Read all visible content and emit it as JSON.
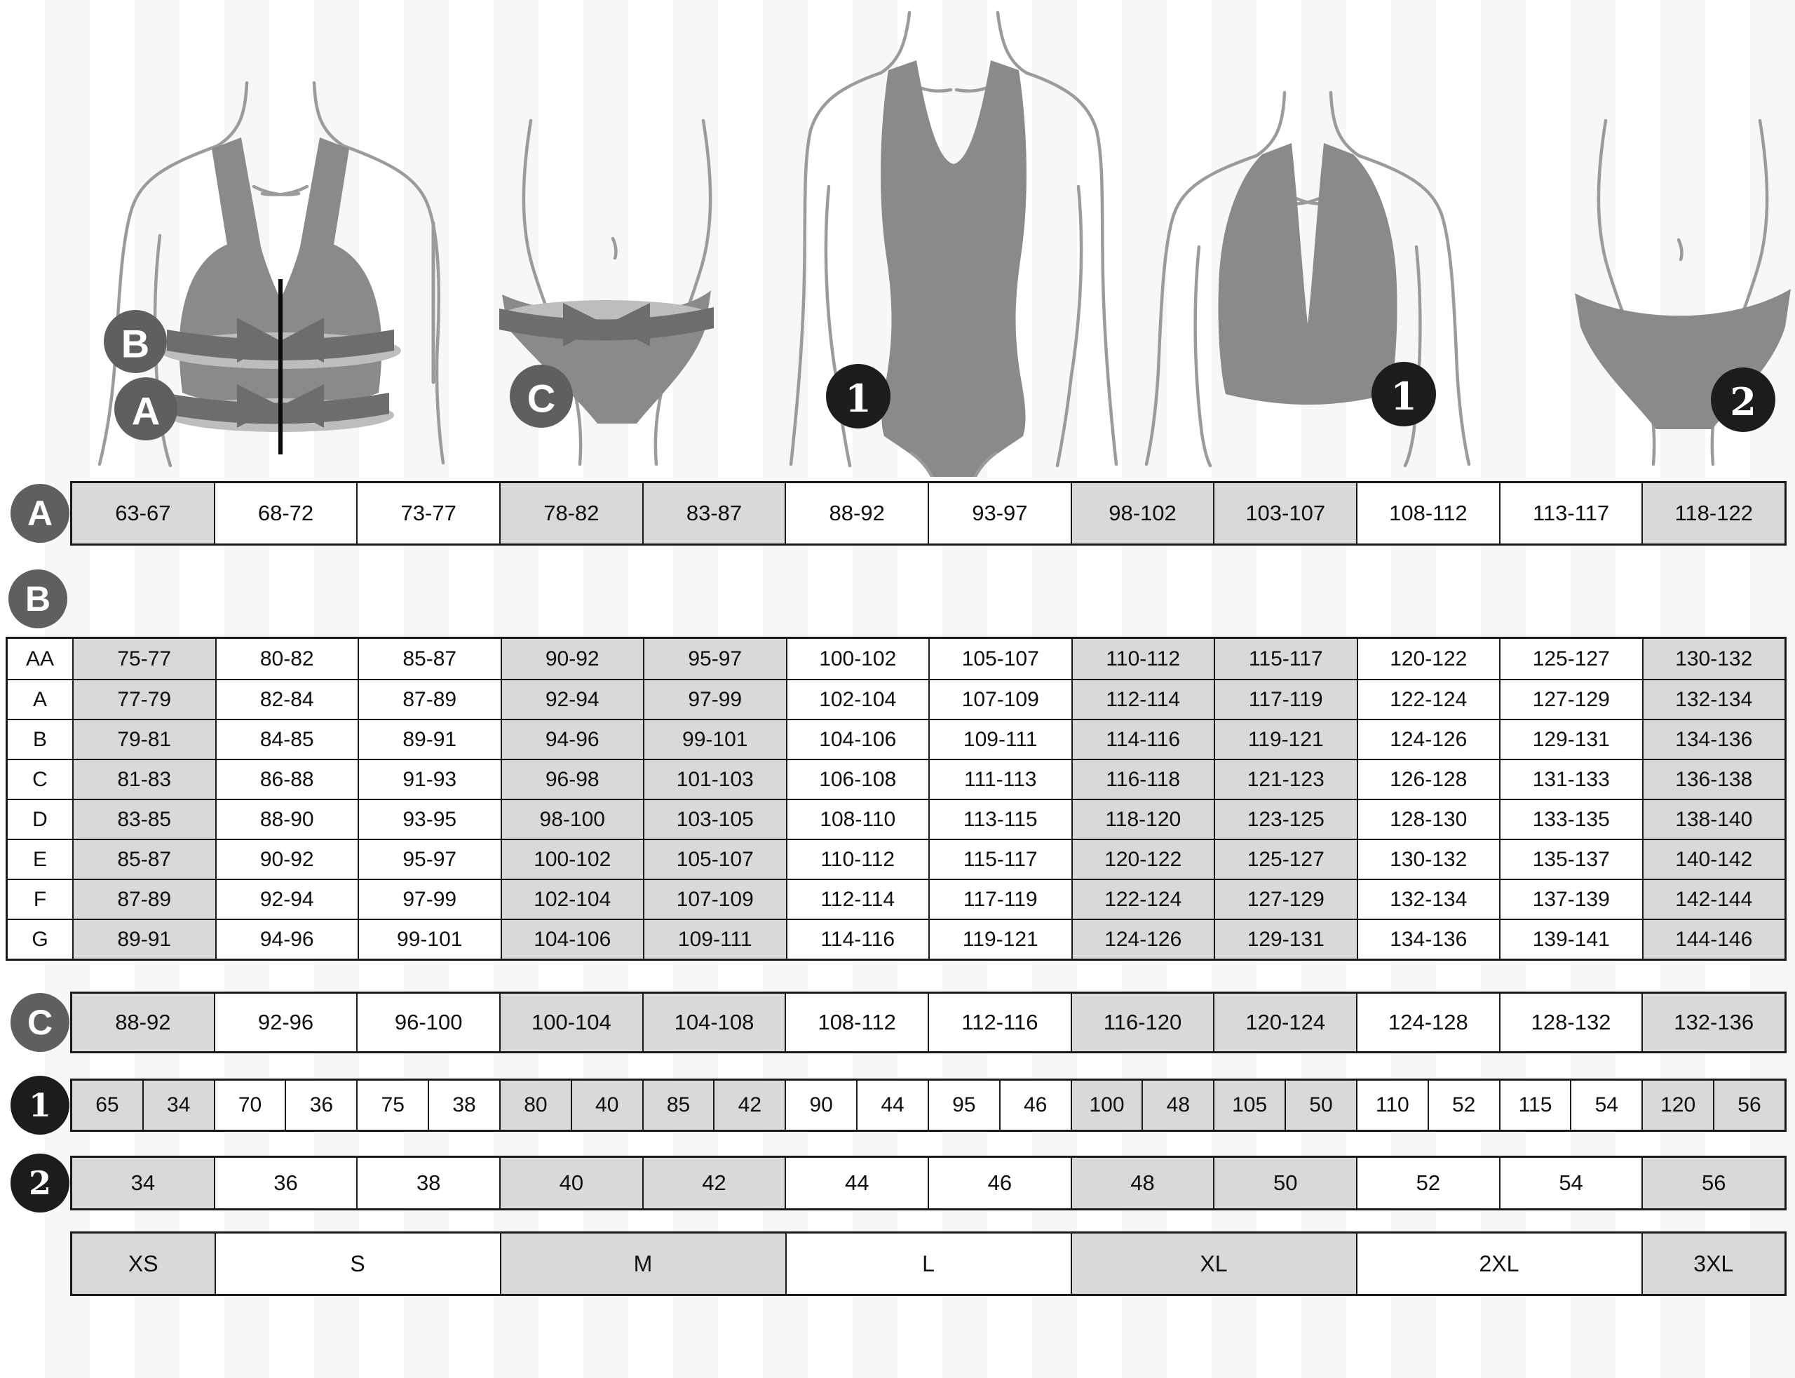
{
  "badges": {
    "underbust": "A",
    "bust": "B",
    "hips": "C",
    "one": "1",
    "two": "2"
  },
  "row_a": [
    "63-67",
    "68-72",
    "73-77",
    "78-82",
    "83-87",
    "88-92",
    "93-97",
    "98-102",
    "103-107",
    "108-112",
    "113-117",
    "118-122"
  ],
  "table_b": {
    "rows": [
      {
        "label": "AA",
        "values": [
          "75-77",
          "80-82",
          "85-87",
          "90-92",
          "95-97",
          "100-102",
          "105-107",
          "110-112",
          "115-117",
          "120-122",
          "125-127",
          "130-132"
        ]
      },
      {
        "label": "A",
        "values": [
          "77-79",
          "82-84",
          "87-89",
          "92-94",
          "97-99",
          "102-104",
          "107-109",
          "112-114",
          "117-119",
          "122-124",
          "127-129",
          "132-134"
        ]
      },
      {
        "label": "B",
        "values": [
          "79-81",
          "84-85",
          "89-91",
          "94-96",
          "99-101",
          "104-106",
          "109-111",
          "114-116",
          "119-121",
          "124-126",
          "129-131",
          "134-136"
        ]
      },
      {
        "label": "C",
        "values": [
          "81-83",
          "86-88",
          "91-93",
          "96-98",
          "101-103",
          "106-108",
          "111-113",
          "116-118",
          "121-123",
          "126-128",
          "131-133",
          "136-138"
        ]
      },
      {
        "label": "D",
        "values": [
          "83-85",
          "88-90",
          "93-95",
          "98-100",
          "103-105",
          "108-110",
          "113-115",
          "118-120",
          "123-125",
          "128-130",
          "133-135",
          "138-140"
        ]
      },
      {
        "label": "E",
        "values": [
          "85-87",
          "90-92",
          "95-97",
          "100-102",
          "105-107",
          "110-112",
          "115-117",
          "120-122",
          "125-127",
          "130-132",
          "135-137",
          "140-142"
        ]
      },
      {
        "label": "F",
        "values": [
          "87-89",
          "92-94",
          "97-99",
          "102-104",
          "107-109",
          "112-114",
          "117-119",
          "122-124",
          "127-129",
          "132-134",
          "137-139",
          "142-144"
        ]
      },
      {
        "label": "G",
        "values": [
          "89-91",
          "94-96",
          "99-101",
          "104-106",
          "109-111",
          "114-116",
          "119-121",
          "124-126",
          "129-131",
          "134-136",
          "139-141",
          "144-146"
        ]
      }
    ]
  },
  "row_c": [
    "88-92",
    "92-96",
    "96-100",
    "100-104",
    "104-108",
    "108-112",
    "112-116",
    "116-120",
    "120-124",
    "124-128",
    "128-132",
    "132-136"
  ],
  "row_1": [
    "65",
    "34",
    "70",
    "36",
    "75",
    "38",
    "80",
    "40",
    "85",
    "42",
    "90",
    "44",
    "95",
    "46",
    "100",
    "48",
    "105",
    "50",
    "110",
    "52",
    "115",
    "54",
    "120",
    "56"
  ],
  "row_2": [
    "34",
    "36",
    "38",
    "40",
    "42",
    "44",
    "46",
    "48",
    "50",
    "52",
    "54",
    "56"
  ],
  "sizes": [
    "XS",
    "S",
    "M",
    "L",
    "XL",
    "2XL",
    "3XL"
  ],
  "size_spans": [
    1,
    2,
    2,
    2,
    2,
    2,
    1
  ],
  "colors": {
    "cell_gray": "#d9d9d9",
    "border": "#1a1a1a",
    "letter_badge": "#5f5f5f",
    "number_badge": "#1c1c1c",
    "garment_gray": "#8a8a8a",
    "tape_dark": "#6d6d6d",
    "tape_light": "#bdbdbd"
  }
}
